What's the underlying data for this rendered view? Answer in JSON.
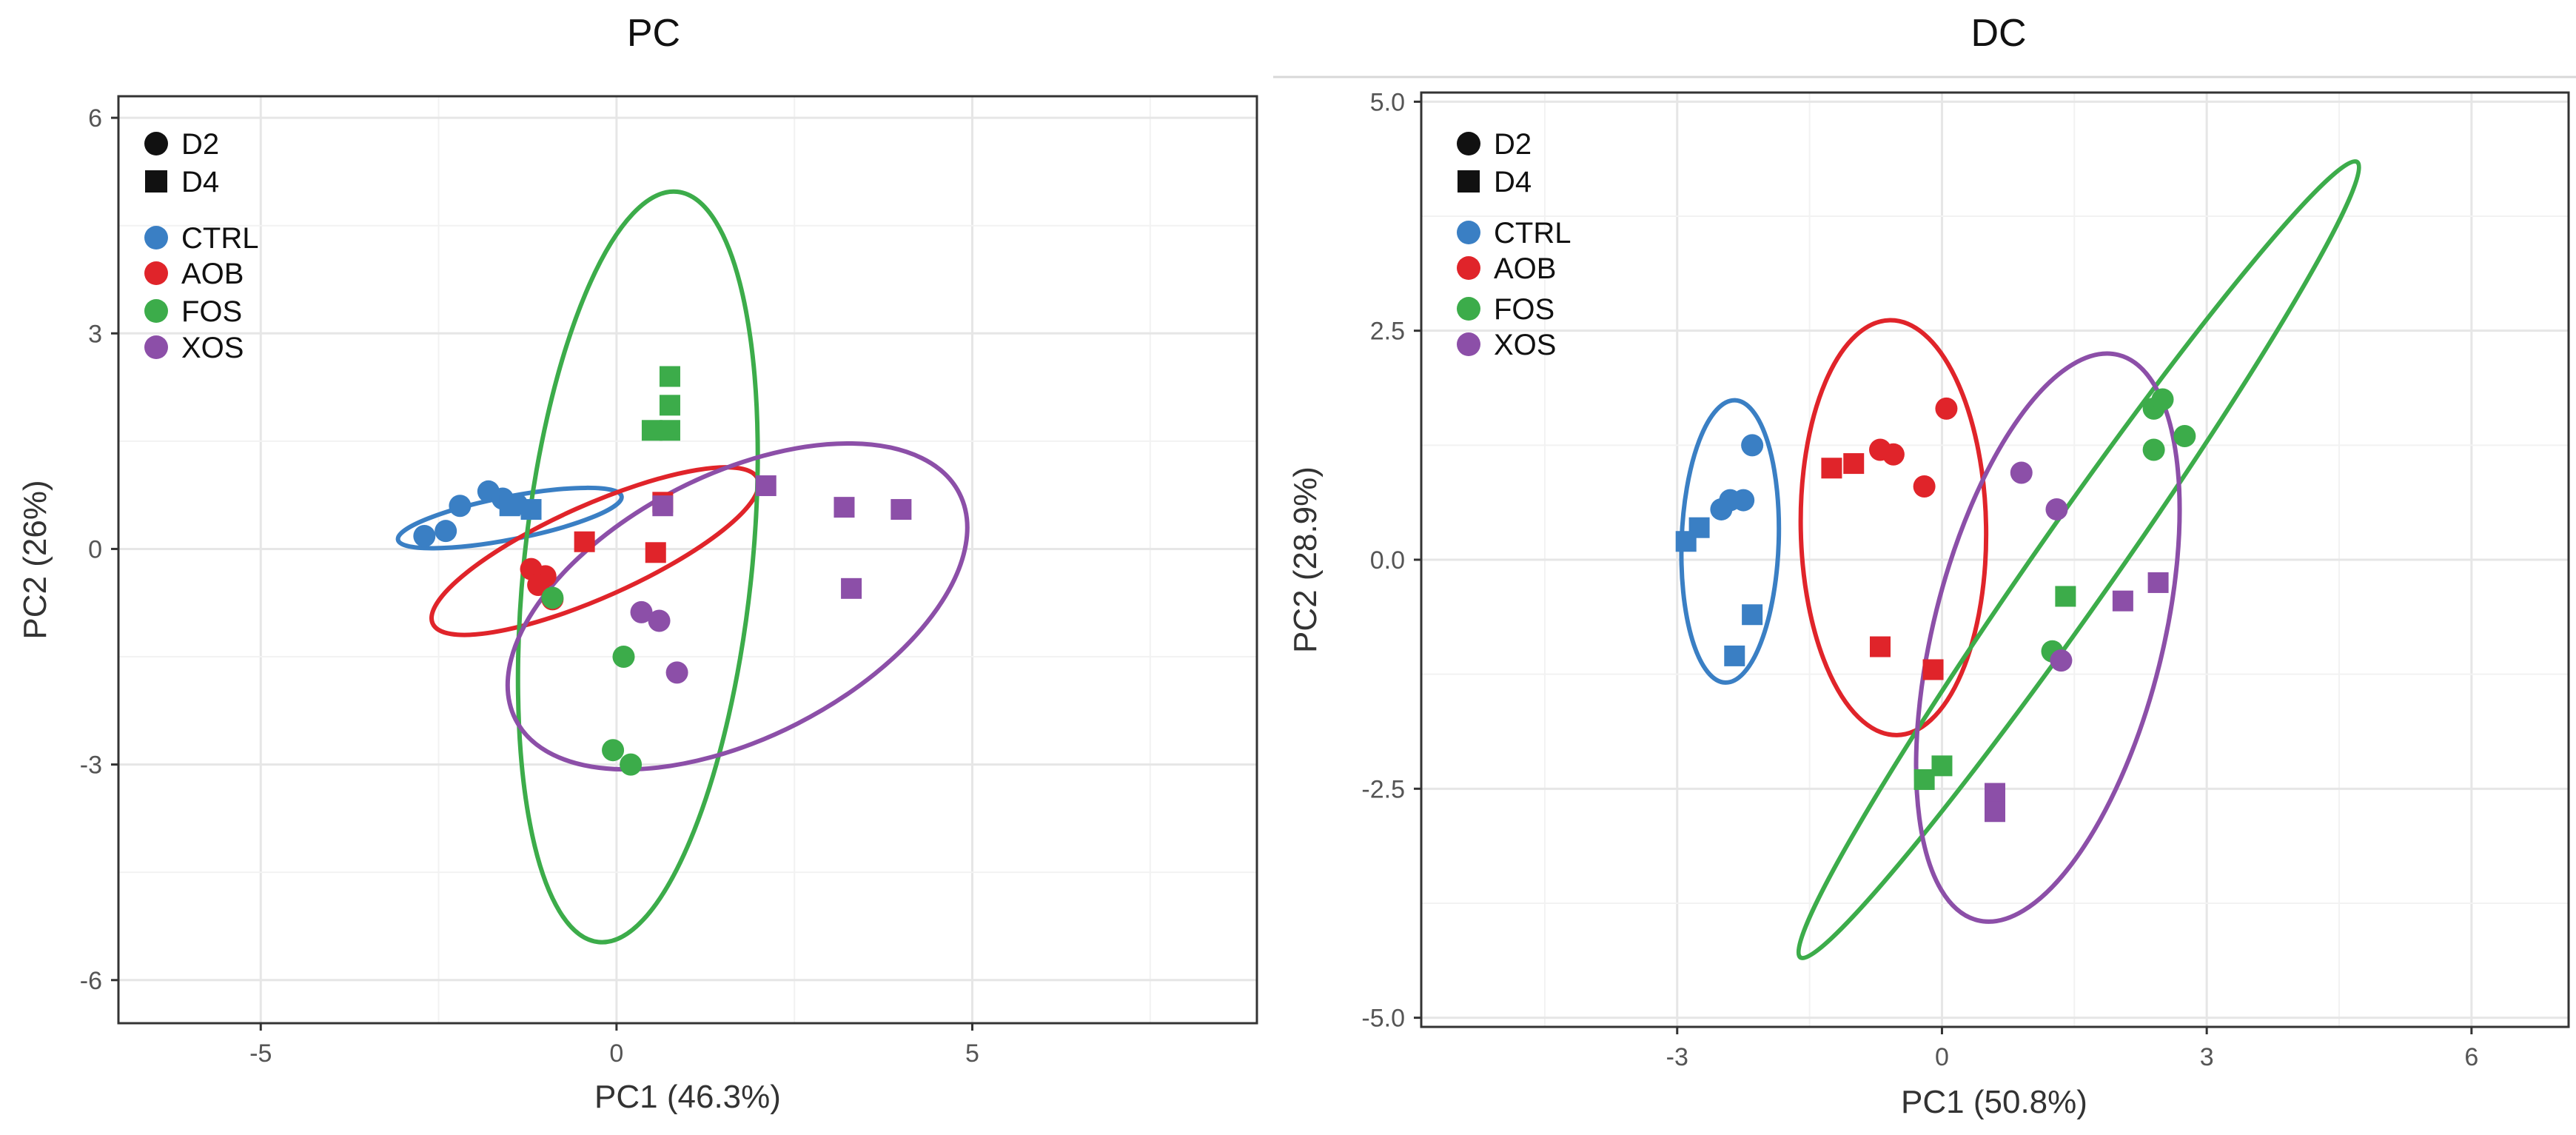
{
  "chart_data": [
    {
      "type": "scatter",
      "title": "PC",
      "xlabel": "PC1 (46.3%)",
      "ylabel": "PC2 (26%)",
      "xlim": [
        -7,
        9
      ],
      "ylim": [
        -6.6,
        6.3
      ],
      "xticks": [
        -5,
        0,
        5
      ],
      "xtick_labels": [
        "-5",
        "0",
        "5"
      ],
      "yticks": [
        -6,
        -3,
        0,
        3,
        6
      ],
      "ytick_labels": [
        "-6",
        "-3",
        "0",
        "3",
        "6"
      ],
      "grid": true,
      "legend_position": "top-left",
      "series": [
        {
          "name": "CTRL",
          "color": "#3a7fc4",
          "d2": [
            [
              -2.7,
              0.18
            ],
            [
              -2.4,
              0.25
            ],
            [
              -2.2,
              0.6
            ],
            [
              -1.8,
              0.8
            ],
            [
              -1.6,
              0.7
            ],
            [
              -1.4,
              0.62
            ]
          ],
          "d4": [
            [
              -1.5,
              0.6
            ],
            [
              -1.2,
              0.55
            ]
          ],
          "ellipse": {
            "cx": -1.5,
            "cy": 0.43,
            "rx": 1.6,
            "ry": 0.3,
            "angle": 11
          }
        },
        {
          "name": "AOB",
          "color": "#e0242a",
          "d2": [
            [
              -1.2,
              -0.28
            ],
            [
              -1.0,
              -0.38
            ],
            [
              -1.1,
              -0.5
            ],
            [
              -0.9,
              -0.7
            ]
          ],
          "d4": [
            [
              -0.45,
              0.1
            ],
            [
              0.55,
              -0.05
            ],
            [
              0.65,
              0.65
            ]
          ],
          "ellipse": {
            "cx": -0.3,
            "cy": -0.03,
            "rx": 2.5,
            "ry": 0.65,
            "angle": 24
          }
        },
        {
          "name": "FOS",
          "color": "#3cac4a",
          "d2": [
            [
              -0.9,
              -0.68
            ],
            [
              0.1,
              -1.5
            ],
            [
              -0.05,
              -2.8
            ],
            [
              0.2,
              -3.0
            ]
          ],
          "d4": [
            [
              0.5,
              1.65
            ],
            [
              0.75,
              1.65
            ],
            [
              0.75,
              2.0
            ],
            [
              0.75,
              2.4
            ]
          ],
          "ellipse": {
            "cx": 0.3,
            "cy": -0.25,
            "rx": 5.3,
            "ry": 1.6,
            "angle": 84
          }
        },
        {
          "name": "XOS",
          "color": "#8c4fa8",
          "d2": [
            [
              0.35,
              -0.88
            ],
            [
              0.6,
              -1.0
            ],
            [
              0.85,
              -1.72
            ]
          ],
          "d4": [
            [
              0.65,
              0.6
            ],
            [
              2.1,
              0.88
            ],
            [
              3.2,
              0.58
            ],
            [
              4.0,
              0.55
            ],
            [
              3.3,
              -0.55
            ]
          ],
          "ellipse": {
            "cx": 1.7,
            "cy": -0.8,
            "rx": 3.5,
            "ry": 1.85,
            "angle": 27
          }
        }
      ],
      "legend": {
        "shapes": [
          "D2",
          "D4"
        ],
        "groups": [
          "CTRL",
          "AOB",
          "FOS",
          "XOS"
        ]
      }
    },
    {
      "type": "scatter",
      "title": "DC",
      "xlabel": "PC1 (50.8%)",
      "ylabel": "PC2 (28.9%)",
      "xlim": [
        -5.9,
        7.1
      ],
      "ylim": [
        -5.1,
        5.1
      ],
      "xticks": [
        -3,
        0,
        3,
        6
      ],
      "xtick_labels": [
        "-3",
        "0",
        "3",
        "6"
      ],
      "yticks": [
        -5,
        -2.5,
        0,
        2.5,
        5
      ],
      "ytick_labels": [
        "-5.0",
        "-2.5",
        "0.0",
        "2.5",
        "5.0"
      ],
      "grid": true,
      "legend_position": "top-left",
      "series": [
        {
          "name": "CTRL",
          "color": "#3a7fc4",
          "d2": [
            [
              -2.15,
              1.25
            ],
            [
              -2.25,
              0.65
            ],
            [
              -2.4,
              0.65
            ],
            [
              -2.5,
              0.55
            ]
          ],
          "d4": [
            [
              -2.9,
              0.2
            ],
            [
              -2.75,
              0.35
            ],
            [
              -2.15,
              -0.6
            ],
            [
              -2.35,
              -1.05
            ]
          ],
          "ellipse": {
            "cx": -2.4,
            "cy": 0.2,
            "rx": 1.6,
            "ry": 0.55,
            "angle": 88
          }
        },
        {
          "name": "AOB",
          "color": "#e0242a",
          "d2": [
            [
              -0.7,
              1.2
            ],
            [
              -0.55,
              1.15
            ],
            [
              0.05,
              1.65
            ],
            [
              -0.2,
              0.8
            ]
          ],
          "d4": [
            [
              -1.25,
              1.0
            ],
            [
              -1.0,
              1.05
            ],
            [
              -0.7,
              -0.95
            ],
            [
              -0.1,
              -1.2
            ]
          ],
          "ellipse": {
            "cx": -0.55,
            "cy": 0.35,
            "rx": 2.35,
            "ry": 1.05,
            "angle": 91
          }
        },
        {
          "name": "FOS",
          "color": "#3cac4a",
          "d2": [
            [
              2.4,
              1.65
            ],
            [
              2.5,
              1.75
            ],
            [
              2.75,
              1.35
            ],
            [
              2.4,
              1.2
            ],
            [
              1.25,
              -1.0
            ]
          ],
          "d4": [
            [
              1.4,
              -0.4
            ],
            [
              -0.2,
              -2.4
            ],
            [
              0.0,
              -2.25
            ]
          ],
          "ellipse": {
            "cx": 1.55,
            "cy": 0.0,
            "rx": 5.5,
            "ry": 0.45,
            "angle": 55
          }
        },
        {
          "name": "XOS",
          "color": "#8c4fa8",
          "d2": [
            [
              0.9,
              0.95
            ],
            [
              1.3,
              0.55
            ],
            [
              1.35,
              -1.1
            ]
          ],
          "d4": [
            [
              2.45,
              -0.25
            ],
            [
              2.05,
              -0.45
            ],
            [
              0.6,
              -2.55
            ],
            [
              0.6,
              -2.75
            ]
          ],
          "ellipse": {
            "cx": 1.2,
            "cy": -0.85,
            "rx": 3.3,
            "ry": 1.3,
            "angle": 76
          }
        }
      ],
      "legend": {
        "shapes": [
          "D2",
          "D4"
        ],
        "groups": [
          "CTRL",
          "AOB",
          "FOS",
          "XOS"
        ]
      }
    }
  ]
}
